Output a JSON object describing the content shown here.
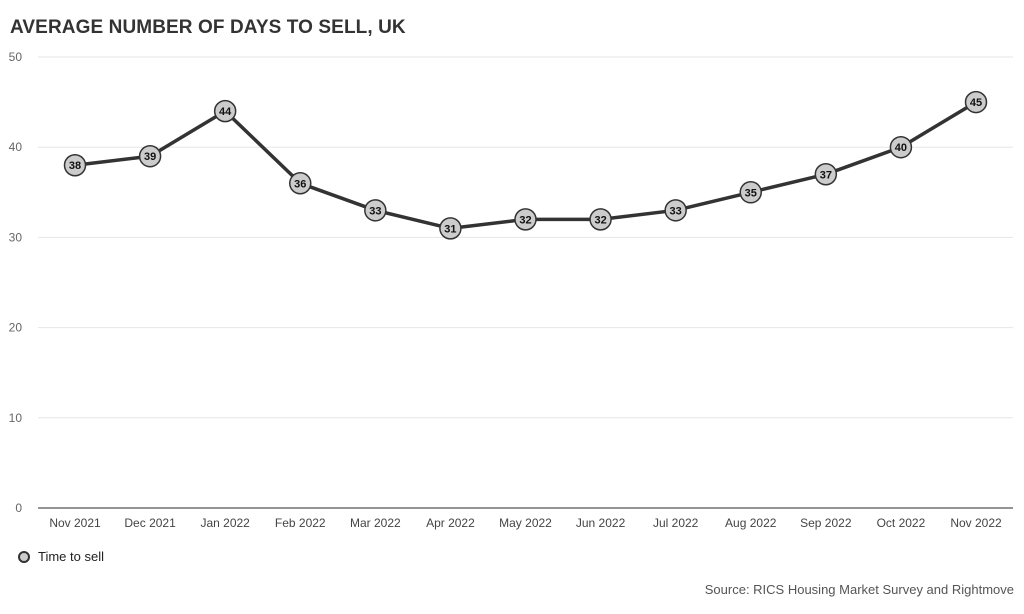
{
  "title": "AVERAGE NUMBER OF DAYS TO SELL, UK",
  "source": "Source: RICS Housing Market Survey and Rightmove",
  "legend": {
    "label": "Time to sell"
  },
  "colors": {
    "line": "#333333",
    "marker_fill": "#cccccc",
    "grid": "#e6e6e6",
    "axis": "#555555",
    "text": "#333333"
  },
  "chart_data": {
    "type": "line",
    "categories": [
      "Nov 2021",
      "Dec 2021",
      "Jan 2022",
      "Feb 2022",
      "Mar 2022",
      "Apr 2022",
      "May 2022",
      "Jun 2022",
      "Jul 2022",
      "Aug 2022",
      "Sep 2022",
      "Oct 2022",
      "Nov 2022"
    ],
    "series": [
      {
        "name": "Time to sell",
        "values": [
          38,
          39,
          44,
          36,
          33,
          31,
          32,
          32,
          33,
          35,
          37,
          40,
          45
        ]
      }
    ],
    "ylim": [
      0,
      50
    ],
    "yticks": [
      0,
      10,
      20,
      30,
      40,
      50
    ],
    "grid": true,
    "legend_position": "bottom-left",
    "data_labels": true
  }
}
